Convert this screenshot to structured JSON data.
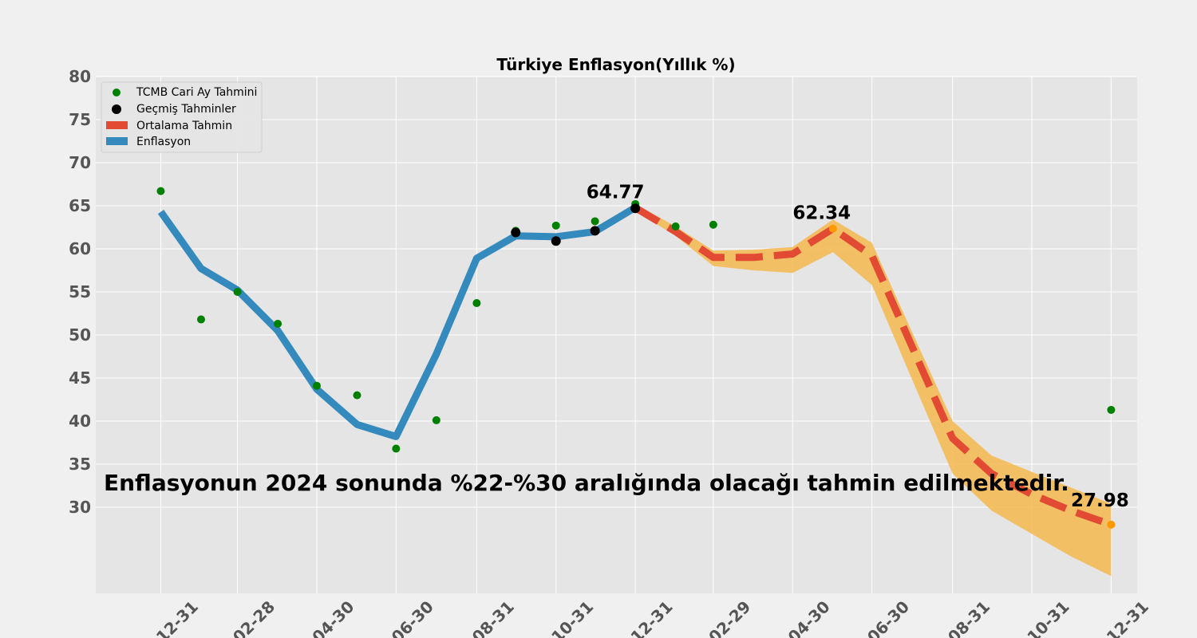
{
  "chart_data": {
    "type": "line",
    "title": "Türkiye Enflasyon(Yıllık %)",
    "xlabel": "",
    "ylabel": "",
    "ylim": [
      20,
      80
    ],
    "y_ticks": [
      30,
      35,
      40,
      45,
      50,
      55,
      60,
      65,
      70,
      75,
      80
    ],
    "x_ticks": [
      "2022-12-31",
      "2023-02-28",
      "2023-04-30",
      "2023-06-30",
      "2023-08-31",
      "2023-10-31",
      "2023-12-31",
      "2024-02-29",
      "2024-04-30",
      "2024-06-30",
      "2024-08-31",
      "2024-10-31",
      "2024-12-31"
    ],
    "x_tick_labels": [
      "12-31",
      "02-28",
      "04-30",
      "06-30",
      "08-31",
      "10-31",
      "12-31",
      "02-29",
      "04-30",
      "06-30",
      "08-31",
      "10-31",
      "12-31"
    ],
    "grid": true,
    "legend_position": "top-left",
    "series": [
      {
        "name": "TCMB Cari Ay Tahmini",
        "kind": "scatter",
        "color": "#008000",
        "points": [
          [
            "2022-12-31",
            66.7
          ],
          [
            "2023-01-31",
            51.8
          ],
          [
            "2023-02-28",
            55.0
          ],
          [
            "2023-03-31",
            51.3
          ],
          [
            "2023-04-30",
            44.1
          ],
          [
            "2023-05-31",
            43.0
          ],
          [
            "2023-06-30",
            36.8
          ],
          [
            "2023-07-31",
            40.1
          ],
          [
            "2023-08-31",
            53.7
          ],
          [
            "2023-09-30",
            62.1
          ],
          [
            "2023-10-31",
            62.7
          ],
          [
            "2023-11-30",
            63.2
          ],
          [
            "2023-12-31",
            65.2
          ],
          [
            "2024-01-31",
            62.6
          ],
          [
            "2024-02-29",
            62.8
          ],
          [
            "2024-12-31",
            41.3
          ]
        ]
      },
      {
        "name": "Geçmiş Tahminler",
        "kind": "scatter",
        "color": "#000000",
        "points": [
          [
            "2023-09-30",
            61.9
          ],
          [
            "2023-10-31",
            60.9
          ],
          [
            "2023-11-30",
            62.1
          ],
          [
            "2023-12-31",
            64.7
          ]
        ]
      },
      {
        "name": "Ortalama Tahmin",
        "kind": "line",
        "color": "#e24a33",
        "dashed": true,
        "points": [
          [
            "2023-12-31",
            64.77
          ],
          [
            "2024-01-31",
            62.0
          ],
          [
            "2024-02-29",
            59.0
          ],
          [
            "2024-03-31",
            59.0
          ],
          [
            "2024-04-30",
            59.4
          ],
          [
            "2024-05-31",
            62.34
          ],
          [
            "2024-06-30",
            59.2
          ],
          [
            "2024-07-31",
            48.6
          ],
          [
            "2024-08-31",
            38.0
          ],
          [
            "2024-09-30",
            33.9
          ],
          [
            "2024-10-31",
            31.5
          ],
          [
            "2024-11-30",
            29.6
          ],
          [
            "2024-12-31",
            27.98
          ]
        ]
      },
      {
        "name": "Enflasyon",
        "kind": "line",
        "color": "#348abd",
        "points": [
          [
            "2022-12-31",
            64.3
          ],
          [
            "2023-01-31",
            57.7
          ],
          [
            "2023-02-28",
            55.2
          ],
          [
            "2023-03-31",
            50.5
          ],
          [
            "2023-04-30",
            43.7
          ],
          [
            "2023-05-31",
            39.6
          ],
          [
            "2023-06-30",
            38.2
          ],
          [
            "2023-07-31",
            47.8
          ],
          [
            "2023-08-31",
            58.9
          ],
          [
            "2023-09-30",
            61.5
          ],
          [
            "2023-10-31",
            61.4
          ],
          [
            "2023-11-30",
            62.0
          ],
          [
            "2023-12-31",
            64.8
          ]
        ]
      }
    ],
    "forecast_band": {
      "color": "#f5b94e",
      "x": [
        "2023-12-31",
        "2024-01-31",
        "2024-02-29",
        "2024-03-31",
        "2024-04-30",
        "2024-05-31",
        "2024-06-30",
        "2024-07-31",
        "2024-08-31",
        "2024-09-30",
        "2024-10-31",
        "2024-11-30",
        "2024-12-31"
      ],
      "low": [
        64.4,
        61.5,
        58.0,
        57.5,
        57.2,
        59.6,
        55.8,
        44.8,
        33.9,
        29.6,
        26.9,
        24.3,
        22.0
      ],
      "high": [
        65.2,
        62.6,
        59.8,
        59.9,
        60.2,
        63.4,
        60.7,
        50.3,
        40.0,
        36.0,
        34.1,
        32.3,
        30.4
      ]
    },
    "forecast_markers": {
      "color": "#ff9900",
      "points": [
        [
          "2024-05-31",
          62.34
        ],
        [
          "2024-12-31",
          27.98
        ]
      ]
    },
    "annotations": [
      {
        "text": "64.77",
        "x": "2023-12-31",
        "y": 64.77
      },
      {
        "text": "62.34",
        "x": "2024-05-31",
        "y": 62.34
      },
      {
        "text": "27.98",
        "x": "2024-12-31",
        "y": 27.98
      }
    ],
    "note": "Enflasyonun 2024 sonunda %22-%30 aralığında olacağı tahmin edilmektedir."
  }
}
